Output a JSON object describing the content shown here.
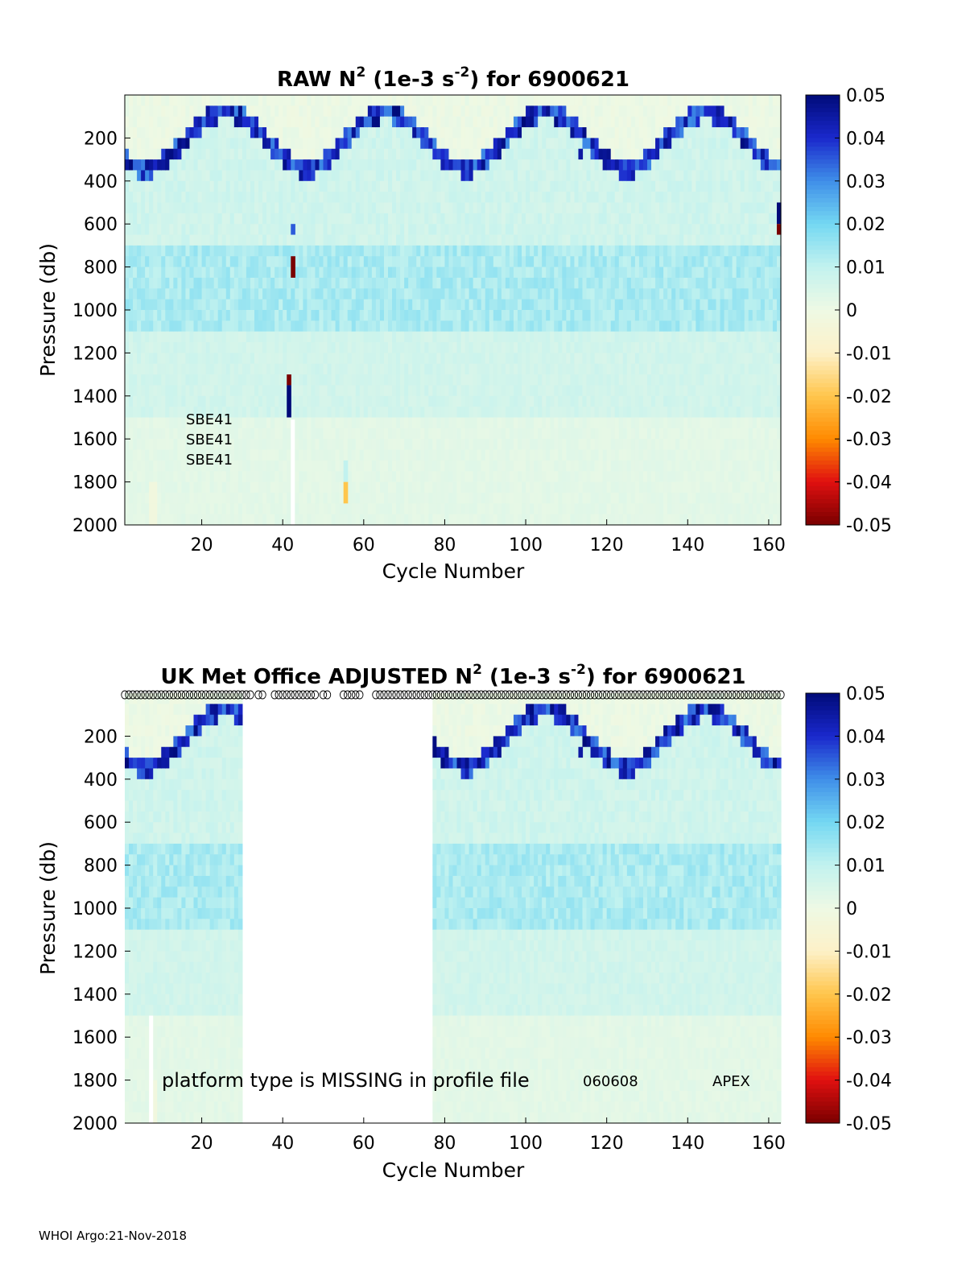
{
  "footer": "WHOI Argo:21-Nov-2018",
  "colors": {
    "colormap_stops": [
      "#7a0000",
      "#e01010",
      "#ff8a00",
      "#ffc64d",
      "#fdf1c8",
      "#eef9e4",
      "#c2f2ef",
      "#74d8f2",
      "#3f8ee8",
      "#1a28cc",
      "#000a78"
    ]
  },
  "chart_data": [
    {
      "type": "heatmap",
      "title": {
        "pre": "RAW N",
        "sup1": "2",
        "mid": " (1e-3 s",
        "sup2": "-2",
        "post": ") for 6900621"
      },
      "xlabel": "Cycle Number",
      "ylabel": "Pressure (db)",
      "xlim": [
        1,
        163
      ],
      "ylim": [
        2000,
        0
      ],
      "xticks": [
        "20",
        "40",
        "60",
        "80",
        "100",
        "120",
        "140",
        "160"
      ],
      "yticks": [
        "200",
        "400",
        "600",
        "800",
        "1000",
        "1200",
        "1400",
        "1600",
        "1800",
        "2000"
      ],
      "colorbar": {
        "range": [
          -0.05,
          0.05
        ],
        "ticks": [
          "0.05",
          "0.04",
          "0.03",
          "0.02",
          "0.01",
          "0",
          "-0.01",
          "-0.02",
          "-0.03",
          "-0.04",
          "-0.05"
        ]
      },
      "annotations": [
        "SBE41",
        "SBE41",
        "SBE41"
      ],
      "missing_cycles": [],
      "anomalies": [
        {
          "cycle": 41,
          "p_from": 1300,
          "p_to": 1350,
          "value": -0.05
        },
        {
          "cycle": 41,
          "p_from": 1350,
          "p_to": 1500,
          "value": 0.05
        },
        {
          "cycle": 42,
          "p_from": 750,
          "p_to": 850,
          "value": -0.05
        },
        {
          "cycle": 42,
          "p_from": 600,
          "p_to": 650,
          "value": 0.035
        },
        {
          "cycle": 55,
          "p_from": 1800,
          "p_to": 1900,
          "value": -0.02
        },
        {
          "cycle": 55,
          "p_from": 1700,
          "p_to": 1800,
          "value": 0.01
        },
        {
          "cycle": 113,
          "p_from": 250,
          "p_to": 300,
          "value": 0.045
        },
        {
          "cycle": 162,
          "p_from": 500,
          "p_to": 600,
          "value": 0.05
        },
        {
          "cycle": 162,
          "p_from": 600,
          "p_to": 650,
          "value": -0.05
        }
      ]
    },
    {
      "type": "heatmap",
      "title": {
        "pre": "UK Met Office  ADJUSTED N",
        "sup1": "2",
        "mid": " (1e-3 s",
        "sup2": "-2",
        "post": ") for 6900621"
      },
      "xlabel": "Cycle Number",
      "ylabel": "Pressure (db)",
      "xlim": [
        1,
        163
      ],
      "ylim": [
        2000,
        0
      ],
      "xticks": [
        "20",
        "40",
        "60",
        "80",
        "100",
        "120",
        "140",
        "160"
      ],
      "yticks": [
        "200",
        "400",
        "600",
        "800",
        "1000",
        "1200",
        "1400",
        "1600",
        "1800",
        "2000"
      ],
      "colorbar": {
        "range": [
          -0.05,
          0.05
        ],
        "ticks": [
          "0.05",
          "0.04",
          "0.03",
          "0.02",
          "0.01",
          "0",
          "-0.01",
          "-0.02",
          "-0.03",
          "-0.04",
          "-0.05"
        ]
      },
      "notes": [
        "platform type is MISSING in profile file",
        "060608",
        "APEX"
      ],
      "missing_cycles": [
        [
          30,
          76
        ]
      ],
      "qc_markers_cycles_absent": [
        33,
        36,
        37,
        49,
        52,
        53,
        54
      ],
      "anomalies": [
        {
          "cycle": 113,
          "p_from": 250,
          "p_to": 300,
          "value": 0.045
        }
      ]
    }
  ]
}
